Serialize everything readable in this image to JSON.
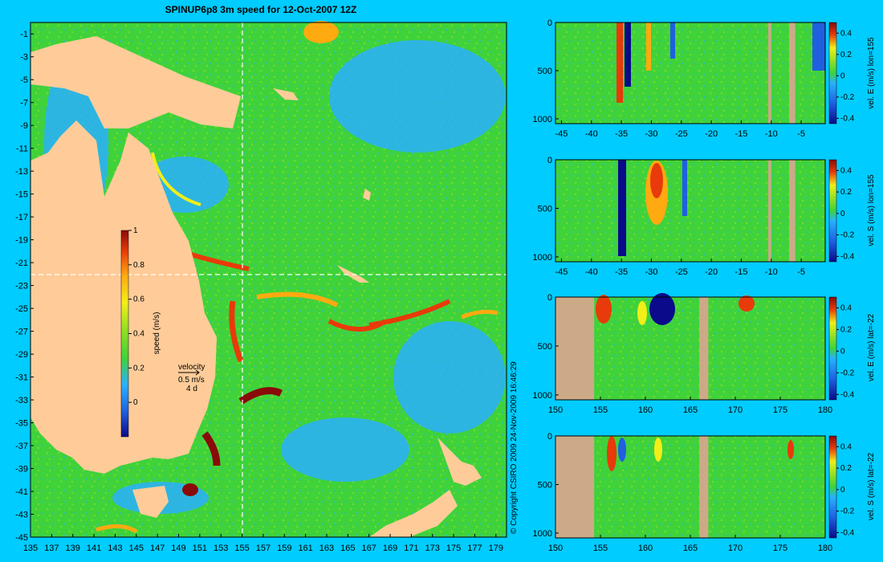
{
  "header": {
    "title": "SPINUP6p8 3m speed for 12-Oct-2007 12Z",
    "copyright": "© Copyright CSIRO 2009   24-Nov-2009 16:46:29"
  },
  "colors": {
    "background": "#00ccff",
    "land": "#ffcc99",
    "section_land": "#ccaa88",
    "colormap": [
      "#0a0a8a",
      "#1f5fe0",
      "#2ab0ff",
      "#3fd23a",
      "#92e022",
      "#f2ee18",
      "#ffaa10",
      "#e83a0a",
      "#8a0a0a"
    ]
  },
  "map_chart": {
    "type": "heatmap",
    "title": "SPINUP6p8 3m speed for 12-Oct-2007 12Z",
    "x_ticks": [
      "135",
      "137",
      "139",
      "141",
      "143",
      "145",
      "147",
      "149",
      "151",
      "153",
      "155",
      "157",
      "159",
      "161",
      "163",
      "165",
      "167",
      "169",
      "171",
      "173",
      "175",
      "177",
      "179"
    ],
    "y_ticks": [
      "-1",
      "-3",
      "-5",
      "-7",
      "-9",
      "-11",
      "-13",
      "-15",
      "-17",
      "-19",
      "-21",
      "-23",
      "-25",
      "-27",
      "-29",
      "-31",
      "-33",
      "-35",
      "-37",
      "-39",
      "-41",
      "-43",
      "-45"
    ],
    "xlim": [
      135,
      180
    ],
    "ylim": [
      -45,
      0
    ],
    "section_lon": 155,
    "section_lat": -22,
    "colorbar": {
      "label": "speed (m/s)",
      "ticks": [
        "1",
        "0.8",
        "0.6",
        "0.4",
        "0.2",
        "0"
      ],
      "range": [
        -0.2,
        1
      ]
    },
    "vector_key": {
      "title": "velocity",
      "speed": "0.5 m/s",
      "duration": "4 d"
    }
  },
  "chart_data": [
    {
      "type": "heatmap",
      "ylabel": "vel. E (m/s) lon=155",
      "x_ticks": [
        "-45",
        "-40",
        "-35",
        "-30",
        "-25",
        "-20",
        "-15",
        "-10",
        "-5"
      ],
      "y_ticks": [
        "0",
        "500",
        "1000"
      ],
      "xlim": [
        -46,
        -1
      ],
      "ylim": [
        1050,
        0
      ],
      "colorbar_ticks": [
        "0.4",
        "0.2",
        "0",
        "-0.2",
        "-0.4"
      ],
      "land_x": [
        [
          -10.5,
          -10
        ],
        [
          -7,
          -6
        ]
      ]
    },
    {
      "type": "heatmap",
      "ylabel": "vel. S (m/s) lon=155",
      "x_ticks": [
        "-45",
        "-40",
        "-35",
        "-30",
        "-25",
        "-20",
        "-15",
        "-10",
        "-5"
      ],
      "y_ticks": [
        "0",
        "500",
        "1000"
      ],
      "xlim": [
        -46,
        -1
      ],
      "ylim": [
        1050,
        0
      ],
      "colorbar_ticks": [
        "0.4",
        "0.2",
        "0",
        "-0.2",
        "-0.4"
      ],
      "land_x": [
        [
          -10.5,
          -10
        ],
        [
          -7,
          -6
        ]
      ]
    },
    {
      "type": "heatmap",
      "ylabel": "vel. E (m/s) lat=-22",
      "x_ticks": [
        "150",
        "155",
        "160",
        "165",
        "170",
        "175",
        "180"
      ],
      "y_ticks": [
        "0",
        "500",
        "1000"
      ],
      "xlim": [
        150,
        180
      ],
      "ylim": [
        1050,
        0
      ],
      "colorbar_ticks": [
        "0.4",
        "0.2",
        "0",
        "-0.2",
        "-0.4"
      ],
      "land_x": [
        [
          150,
          154.3
        ],
        [
          166,
          167
        ]
      ]
    },
    {
      "type": "heatmap",
      "ylabel": "vel. S (m/s) lat=-22",
      "x_ticks": [
        "150",
        "155",
        "160",
        "165",
        "170",
        "175",
        "180"
      ],
      "y_ticks": [
        "0",
        "500",
        "1000"
      ],
      "xlim": [
        150,
        180
      ],
      "ylim": [
        1050,
        0
      ],
      "colorbar_ticks": [
        "0.4",
        "0.2",
        "0",
        "-0.2",
        "-0.4"
      ],
      "land_x": [
        [
          150,
          154.3
        ],
        [
          166,
          167
        ]
      ]
    }
  ]
}
